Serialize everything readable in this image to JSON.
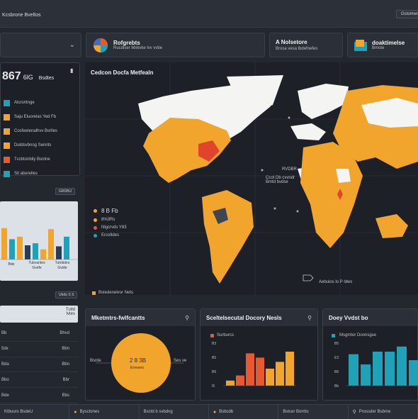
{
  "topbar": {
    "title": "Kcsbrone Bveltos",
    "button": "Gstomws"
  },
  "tiles": [
    {
      "title": "Rofgrebts",
      "sub": "Rucdiser Mxkvke lvv vvbe",
      "icon": "pie-chart-icon"
    },
    {
      "title": "A Nolsetore",
      "sub": "Brosa vesa lbdefnefes"
    },
    {
      "title": "doaktimelse",
      "sub": "Bmote",
      "icon": "folder-icon"
    }
  ],
  "sidebar": {
    "headline_value": "867",
    "headline_unit": "6lG",
    "headline_label": "Bsdtes",
    "items": [
      {
        "label": "Alcrontnge",
        "color": "#1fa2b8"
      },
      {
        "label": "Saju Eluorelas Yed Fb",
        "color": "#f2a52c"
      },
      {
        "label": "Cosfeetenalhvv Bsrlles",
        "color": "#f2a52c"
      },
      {
        "label": "Dutdsvbnog Senrits",
        "color": "#f2a52c"
      },
      {
        "label": "Tvzbtonbily Bsntne",
        "color": "#e7592f"
      },
      {
        "label": "Sit aberelles",
        "color": "#1fa2b8"
      }
    ],
    "button": "GRDBU",
    "chart_labels": [
      "Bde",
      "Tubvantes\nGvefe",
      "Tutnbdes\nGvtde"
    ],
    "bottom_button": "Ubda S S",
    "table_header": "Tutld\nIvtes",
    "table_rows": [
      {
        "label": "Bb",
        "value": "Bhvd"
      },
      {
        "label": "5dx",
        "value": "Bbn"
      },
      {
        "label": "Bda",
        "value": "Bbn"
      },
      {
        "label": "Bbo",
        "value": "Bbr"
      },
      {
        "label": "Bde",
        "value": "Bbs"
      }
    ],
    "chart": {
      "type": "bar",
      "values": [
        62,
        40,
        45,
        28,
        32,
        20,
        60,
        26,
        45
      ],
      "colors": [
        "#f2a52c",
        "#1fa2b8",
        "#f2a52c",
        "#2a3d52",
        "#1fa2b8",
        "#f2a52c",
        "#f2a52c",
        "#2a3d52",
        "#1fa2b8"
      ],
      "ylim": [
        0,
        70
      ]
    }
  },
  "map": {
    "title": "Cedcon Docfa Metfealn",
    "label1": "RVDBR",
    "label2": "Ccot Db cvvndr\nBmtd bvdse",
    "legend_value": "8 B Fb",
    "legend_items": [
      {
        "label": "8%3Rs",
        "color": "#f2a52c"
      },
      {
        "label": "Nlgcrvds Y83",
        "color": "#e7592f"
      },
      {
        "label": "Ercoltdes",
        "color": "#1fa2b8"
      }
    ],
    "footer_left": "Bstedenelvor Nets",
    "footer_right": "Aebuios lo P ldws",
    "colors": {
      "ocean": "#1a1e24",
      "land_white": "#f4f4f2",
      "land_orange": "#f2a52c",
      "accent_red": "#e0452b"
    }
  },
  "bottom_panels": [
    {
      "title": "Mketmtrs-fwlfcantts",
      "donut_value": "2 8 3B",
      "donut_sub": "Erresers",
      "donut_left": "Bsrde",
      "donut_right": "Ses ve",
      "donut_color": "#f2a52c"
    },
    {
      "title": "Sceltelsecutal Docory Nesls",
      "legend": "Surburcs",
      "chart": {
        "type": "bar",
        "values": [
          6,
          12,
          38,
          33,
          20,
          28,
          40
        ],
        "colors": [
          "#f2a52c",
          "#e7592f",
          "#e7592f",
          "#e7592f",
          "#f2a52c",
          "#f2a52c",
          "#f2a52c"
        ],
        "ylim": [
          0,
          50
        ]
      },
      "ylabels": [
        "B3",
        "B5",
        "B6",
        "I5"
      ]
    },
    {
      "title": "Doey Vvdst bo",
      "legend": "Msgmtor Donnsgse",
      "chart": {
        "type": "bar",
        "values": [
          37,
          25,
          40,
          40,
          46,
          30,
          25
        ],
        "colors": [
          "#1fa2b8",
          "#1fa2b8",
          "#1fa2b8",
          "#1fa2b8",
          "#1fa2b8",
          "#1fa2b8",
          "#1fa2b8"
        ],
        "ylim": [
          0,
          50
        ]
      },
      "ylabels": [
        "B5",
        "E3",
        "B6",
        "Bb"
      ]
    }
  ],
  "statusbar": [
    "Ktbuurs BsdeU",
    "Bysctones",
    "Bsctd b svbdng",
    "Bsbcdb",
    "Bstcer Borrbs",
    "Prossder Bsbrne"
  ]
}
